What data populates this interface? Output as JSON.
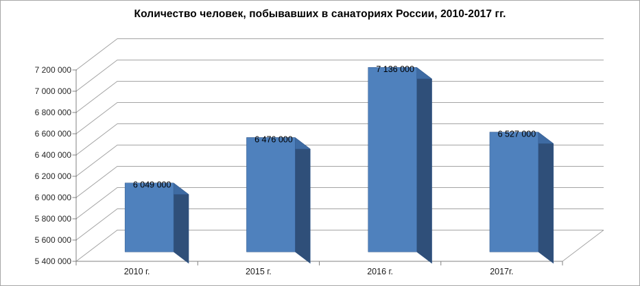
{
  "window": {
    "background": "#ffffff",
    "border_color": "#a6a6a6"
  },
  "chart_data": {
    "type": "bar",
    "style": "3d-column",
    "title": "Количество человек, побывавших в санаториях России, 2010-2017 гг.",
    "categories": [
      "2010 г.",
      "2015 г.",
      "2016 г.",
      "2017г."
    ],
    "values": [
      6049000,
      6476000,
      7136000,
      6527000
    ],
    "data_labels": [
      "6 049 000",
      "6 476 000",
      "7 136 000",
      "6 527 000"
    ],
    "xlabel": "",
    "ylabel": "",
    "ylim": [
      5400000,
      7200000
    ],
    "ytick_step": 200000,
    "ytick_labels": [
      "5 400 000",
      "5 600 000",
      "5 800 000",
      "6 000 000",
      "6 200 000",
      "6 400 000",
      "6 600 000",
      "6 800 000",
      "7 000 000",
      "7 200 000"
    ],
    "grid": true,
    "legend_position": "none",
    "colors": {
      "bar_front": "#4f81bd",
      "bar_side": "#2f4f79",
      "bar_top": "#3e6ba3",
      "bar_edge": "#33598c",
      "gridline": "#a3a3a3",
      "axis": "#808080",
      "tick_text": "#262626",
      "title_text": "#000000"
    }
  }
}
